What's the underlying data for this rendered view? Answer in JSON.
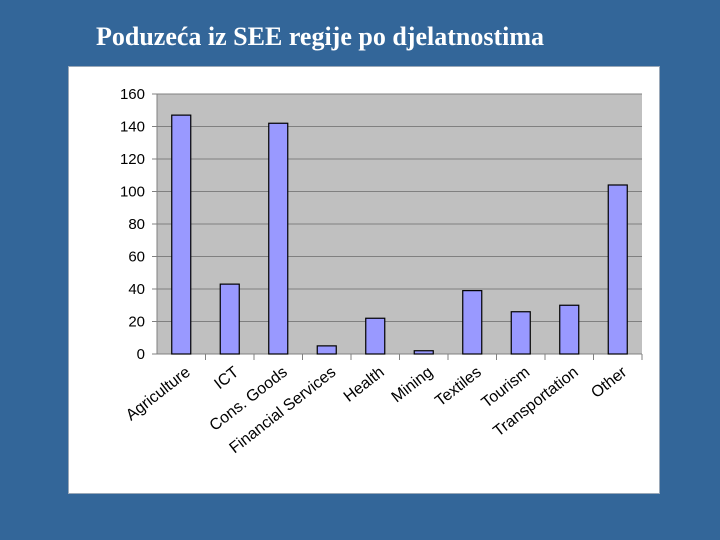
{
  "slide": {
    "title": "Poduzeća iz SEE regije po djelatnostima",
    "background_color": "#336699"
  },
  "chart_data": {
    "type": "bar",
    "title": "",
    "xlabel": "",
    "ylabel": "",
    "categories": [
      "Agriculture",
      "ICT",
      "Cons. Goods",
      "Financial Services",
      "Health",
      "Mining",
      "Textiles",
      "Tourism",
      "Transportation",
      "Other"
    ],
    "values": [
      147,
      43,
      142,
      5,
      22,
      2,
      39,
      26,
      30,
      104
    ],
    "ylim": [
      0,
      160
    ],
    "yticks": [
      0,
      20,
      40,
      60,
      80,
      100,
      120,
      140,
      160
    ],
    "grid": true,
    "legend": "none",
    "bar_color": "#9999ff",
    "plot_background": "#c0c0c0"
  }
}
